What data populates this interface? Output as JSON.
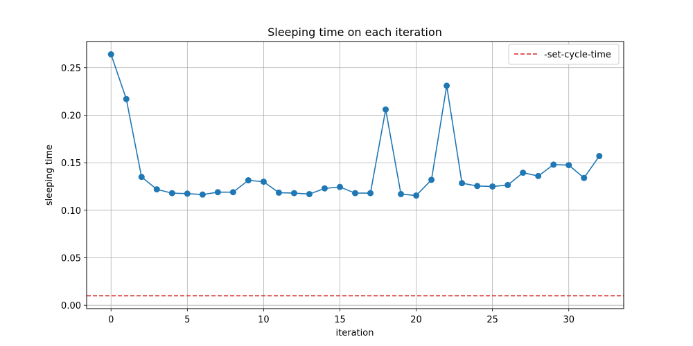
{
  "chart_data": {
    "type": "line",
    "title": "Sleeping time on each iteration",
    "xlabel": "iteration",
    "ylabel": "sleeping time",
    "xlim": [
      -1.6,
      33.6
    ],
    "ylim": [
      -0.0035,
      0.2775
    ],
    "xticks": [
      0,
      5,
      10,
      15,
      20,
      25,
      30
    ],
    "yticks": [
      0.0,
      0.05,
      0.1,
      0.15,
      0.2,
      0.25
    ],
    "ytick_labels": [
      "0.00",
      "0.05",
      "0.10",
      "0.15",
      "0.20",
      "0.25"
    ],
    "grid": true,
    "legend_position": "top-right",
    "series": [
      {
        "color": "#1f77b4",
        "marker": "circle",
        "x": [
          0,
          1,
          2,
          3,
          4,
          5,
          6,
          7,
          8,
          9,
          10,
          11,
          12,
          13,
          14,
          15,
          16,
          17,
          18,
          19,
          20,
          21,
          22,
          23,
          24,
          25,
          26,
          27,
          28,
          29,
          30,
          31,
          32
        ],
        "values": [
          0.264,
          0.217,
          0.135,
          0.122,
          0.118,
          0.1175,
          0.1165,
          0.119,
          0.119,
          0.1315,
          0.13,
          0.1185,
          0.118,
          0.117,
          0.123,
          0.1245,
          0.118,
          0.118,
          0.206,
          0.117,
          0.1155,
          0.132,
          0.231,
          0.1285,
          0.1255,
          0.125,
          0.1265,
          0.1395,
          0.136,
          0.148,
          0.1475,
          0.134,
          0.157
        ]
      }
    ],
    "hlines": [
      {
        "name": "-set-cycle-time",
        "y": 0.01,
        "color": "#d62728",
        "style": "dashed"
      }
    ]
  }
}
